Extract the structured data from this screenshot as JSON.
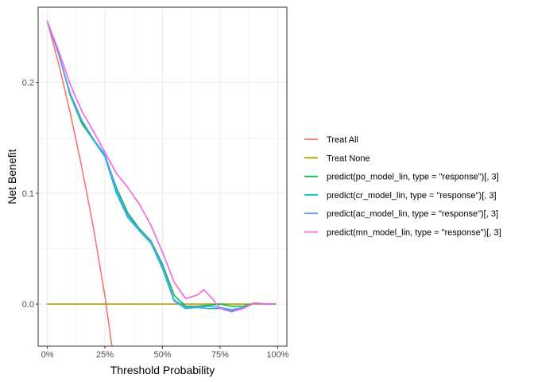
{
  "chart_data": {
    "type": "line",
    "title": "",
    "xlabel": "Threshold Probability",
    "ylabel": "Net Benefit",
    "xlim": [
      -0.04,
      1.04
    ],
    "ylim": [
      -0.038,
      0.268
    ],
    "x_ticks": [
      0,
      0.25,
      0.5,
      0.75,
      1.0
    ],
    "x_tick_labels": [
      "0%",
      "25%",
      "50%",
      "75%",
      "100%"
    ],
    "y_ticks": [
      0,
      0.1,
      0.2
    ],
    "y_tick_labels": [
      "0.0",
      "0.1",
      "0.2"
    ],
    "grid": true,
    "legend_position": "right",
    "series": [
      {
        "name": "Treat All",
        "color": "#F8766D",
        "x": [
          0,
          0.05,
          0.1,
          0.15,
          0.2,
          0.25,
          0.28
        ],
        "y": [
          0.255,
          0.216,
          0.172,
          0.123,
          0.069,
          0.007,
          -0.038
        ]
      },
      {
        "name": "Treat None",
        "color": "#B79F00",
        "x": [
          0,
          0.99
        ],
        "y": [
          0,
          0
        ]
      },
      {
        "name": "predict(po_model_lin, type = \"response\")[, 3]",
        "color": "#00BA38",
        "x": [
          0,
          0.05,
          0.1,
          0.15,
          0.2,
          0.25,
          0.3,
          0.35,
          0.4,
          0.45,
          0.5,
          0.55,
          0.6,
          0.65,
          0.7,
          0.75,
          0.8,
          0.85,
          0.9,
          0.95,
          0.99
        ],
        "y": [
          0.255,
          0.225,
          0.188,
          0.163,
          0.148,
          0.134,
          0.105,
          0.082,
          0.068,
          0.057,
          0.036,
          0.008,
          -0.002,
          -0.002,
          -0.001,
          0.0,
          -0.002,
          -0.002,
          0.001,
          0.0,
          0.0
        ]
      },
      {
        "name": "predict(cr_model_lin, type = \"response\")[, 3]",
        "color": "#00BFC4",
        "x": [
          0,
          0.05,
          0.1,
          0.15,
          0.2,
          0.25,
          0.3,
          0.35,
          0.4,
          0.45,
          0.5,
          0.55,
          0.6,
          0.65,
          0.7,
          0.75,
          0.8,
          0.85,
          0.9,
          0.95,
          0.99
        ],
        "y": [
          0.255,
          0.225,
          0.189,
          0.165,
          0.148,
          0.133,
          0.1,
          0.078,
          0.066,
          0.055,
          0.032,
          0.003,
          -0.004,
          -0.003,
          -0.004,
          -0.004,
          -0.006,
          -0.004,
          0.001,
          0.0,
          0.0
        ]
      },
      {
        "name": "predict(ac_model_lin, type = \"response\")[, 3]",
        "color": "#619CFF",
        "x": [
          0,
          0.05,
          0.1,
          0.15,
          0.2,
          0.25,
          0.3,
          0.35,
          0.4,
          0.45,
          0.5,
          0.55,
          0.6,
          0.65,
          0.7,
          0.75,
          0.8,
          0.85,
          0.9,
          0.95,
          0.99
        ],
        "y": [
          0.255,
          0.225,
          0.19,
          0.166,
          0.149,
          0.135,
          0.103,
          0.08,
          0.067,
          0.056,
          0.034,
          0.004,
          -0.003,
          -0.003,
          -0.002,
          -0.003,
          -0.005,
          -0.003,
          0.001,
          0.0,
          0.0
        ]
      },
      {
        "name": "predict(mn_model_lin, type = \"response\")[, 3]",
        "color": "#F564E3",
        "x": [
          0,
          0.05,
          0.1,
          0.15,
          0.2,
          0.25,
          0.3,
          0.35,
          0.4,
          0.45,
          0.5,
          0.55,
          0.6,
          0.65,
          0.68,
          0.72,
          0.75,
          0.8,
          0.85,
          0.9,
          0.95,
          0.99
        ],
        "y": [
          0.255,
          0.228,
          0.198,
          0.174,
          0.156,
          0.137,
          0.118,
          0.105,
          0.09,
          0.071,
          0.047,
          0.02,
          0.005,
          0.008,
          0.013,
          0.004,
          -0.004,
          -0.007,
          -0.004,
          0.001,
          0.0,
          0.0
        ]
      }
    ]
  }
}
